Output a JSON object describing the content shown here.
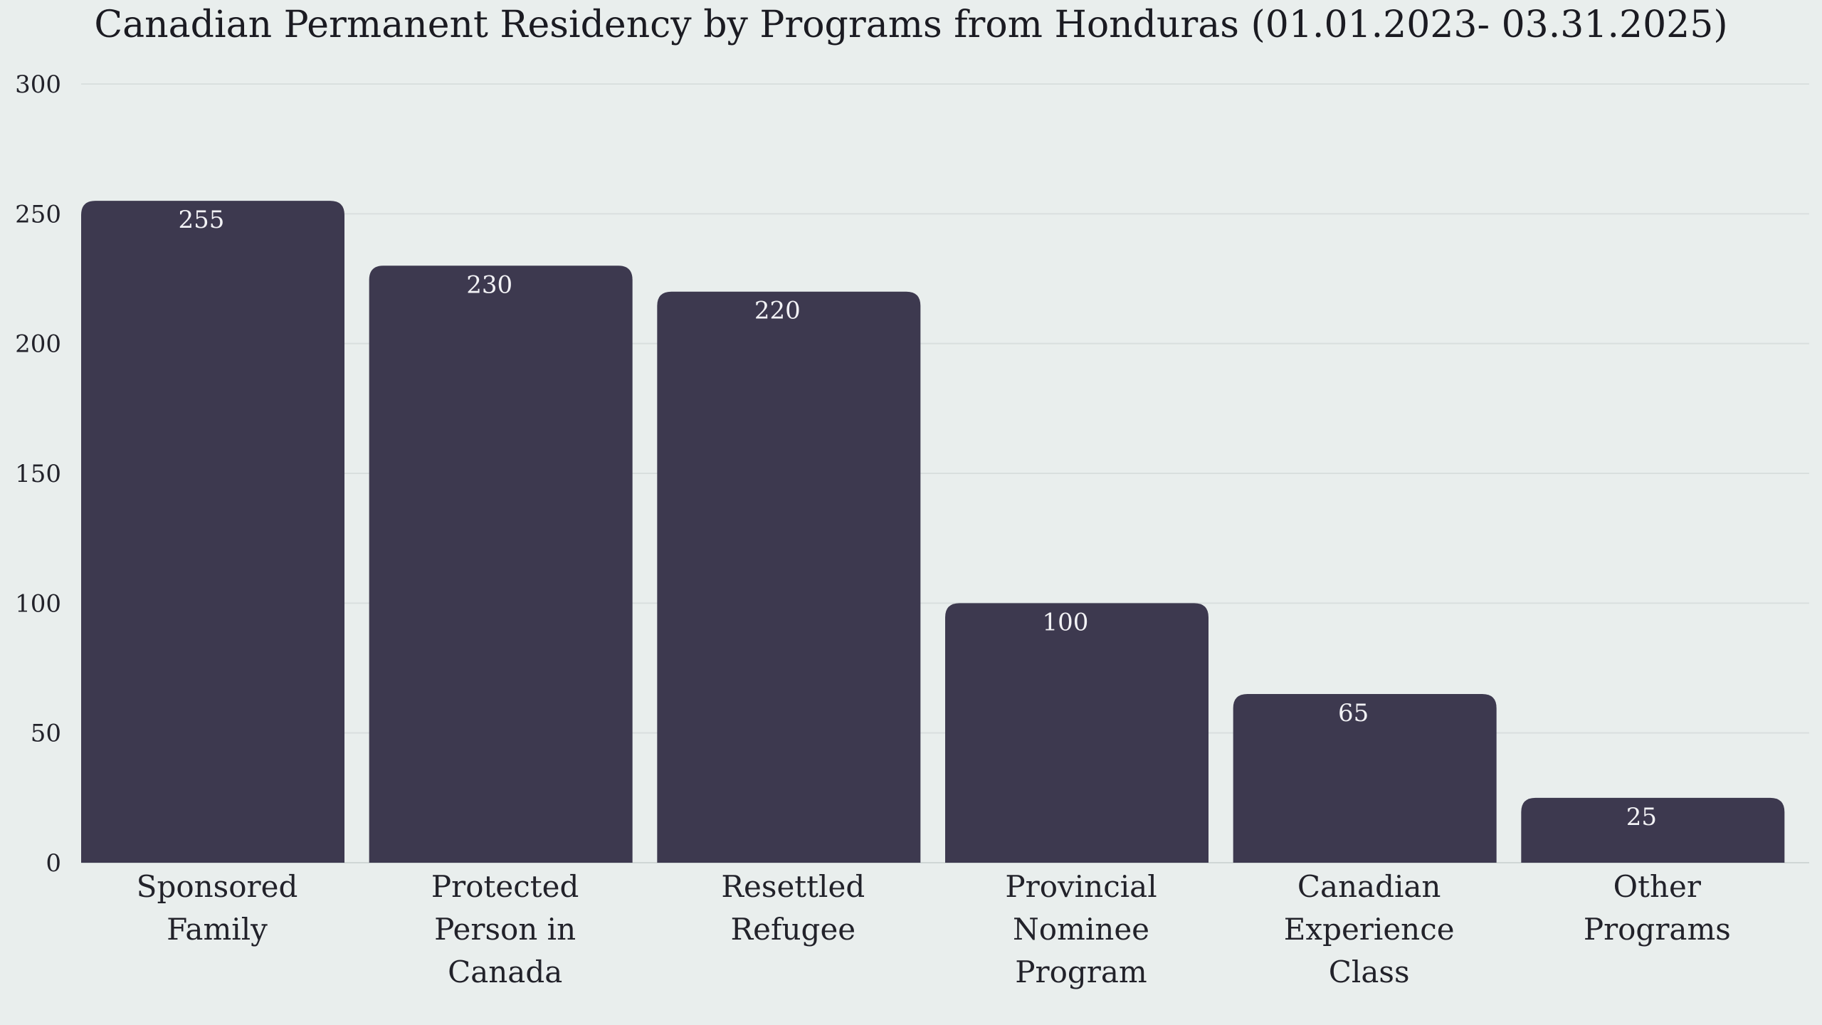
{
  "chart_data": {
    "type": "bar",
    "title": "Canadian Permanent Residency by Programs from Honduras (01.01.2023- 03.31.2025)",
    "xlabel": "",
    "ylabel": "",
    "categories": [
      [
        "Sponsored",
        "Family"
      ],
      [
        "Protected",
        "Person in",
        "Canada"
      ],
      [
        "Resettled",
        "Refugee"
      ],
      [
        "Provincial",
        "Nominee",
        "Program"
      ],
      [
        "Canadian",
        "Experience",
        "Class"
      ],
      [
        "Other",
        "Programs"
      ]
    ],
    "values": [
      255,
      230,
      220,
      100,
      65,
      25
    ],
    "data_labels": [
      "255",
      "230",
      "220",
      "100",
      "65",
      "25"
    ],
    "ylim": [
      0,
      300
    ],
    "yticks": [
      0,
      50,
      100,
      150,
      200,
      250,
      300
    ],
    "ytick_labels": [
      "0",
      "50",
      "100",
      "150",
      "200",
      "250",
      "300"
    ],
    "grid": true,
    "legend": "none",
    "colors": {
      "bar": "#3d394f",
      "background": "#e9eeed",
      "grid": "#d9dfde"
    }
  }
}
